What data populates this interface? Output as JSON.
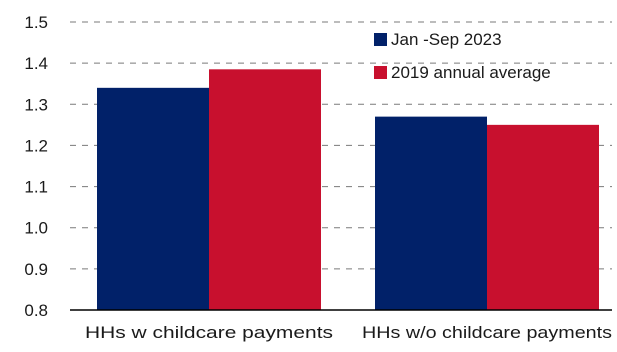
{
  "chart_data": {
    "type": "bar",
    "categories": [
      "HHs w childcare payments",
      "HHs w/o childcare payments"
    ],
    "series": [
      {
        "name": "Jan -Sep 2023",
        "values": [
          1.34,
          1.27
        ],
        "color": "#012169"
      },
      {
        "name": "2019 annual average",
        "values": [
          1.385,
          1.25
        ],
        "color": "#c8102e"
      }
    ],
    "y_ticks": [
      "0.8",
      "0.9",
      "1.0",
      "1.1",
      "1.2",
      "1.3",
      "1.4",
      "1.5"
    ],
    "ylim": [
      0.8,
      1.5
    ],
    "grid": true,
    "legend_position": "top-right",
    "title": "",
    "xlabel": "",
    "ylabel": ""
  }
}
